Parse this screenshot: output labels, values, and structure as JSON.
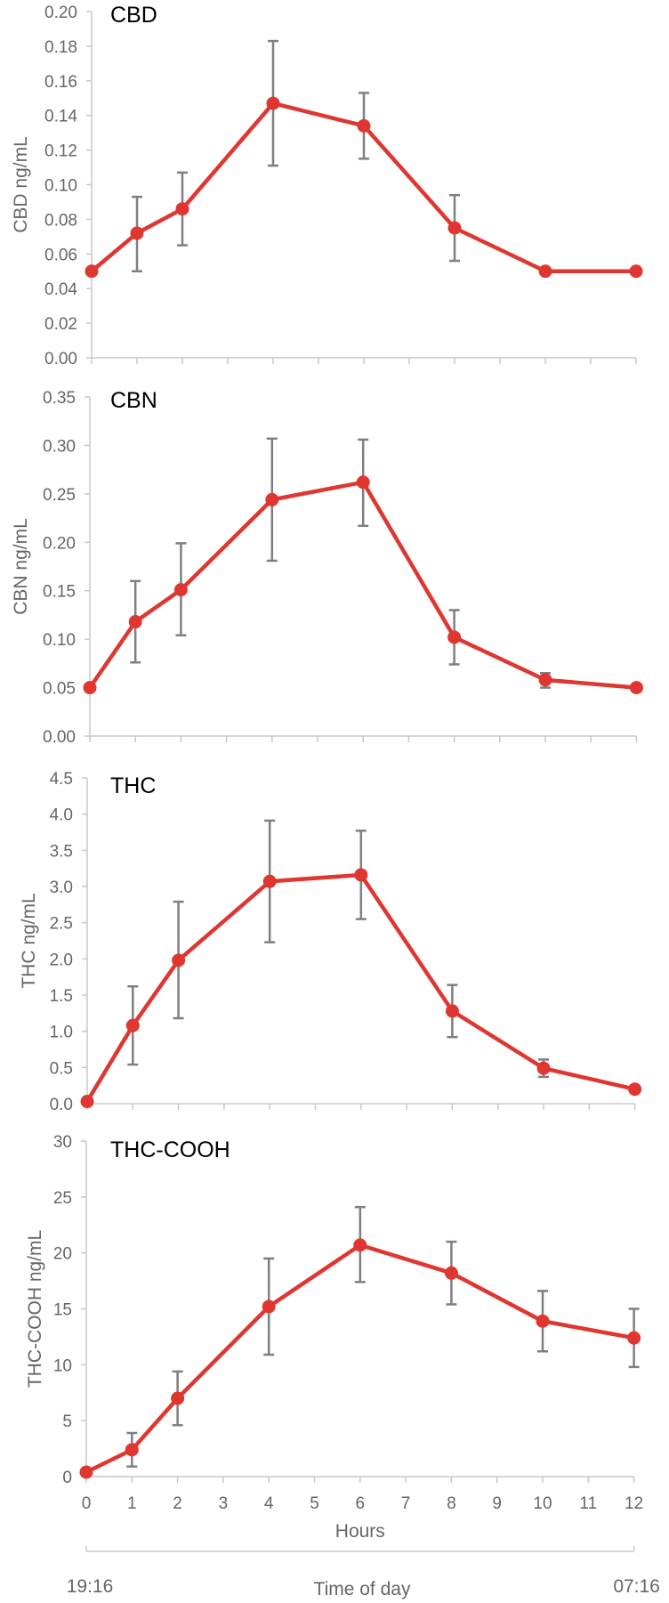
{
  "chart_data": [
    {
      "type": "line",
      "title": "CBD",
      "ylabel": "CBD ng/mL",
      "ylim": [
        0,
        0.2
      ],
      "yticks": [
        "0.00",
        "0.02",
        "0.04",
        "0.06",
        "0.08",
        "0.10",
        "0.12",
        "0.14",
        "0.16",
        "0.18",
        "0.20"
      ],
      "x": [
        0,
        1,
        2,
        4,
        6,
        8,
        10,
        12
      ],
      "values": [
        0.05,
        0.072,
        0.086,
        0.147,
        0.134,
        0.075,
        0.05,
        0.05
      ],
      "err_low": [
        0.05,
        0.05,
        0.065,
        0.111,
        0.115,
        0.056,
        0.05,
        0.05
      ],
      "err_high": [
        0.05,
        0.093,
        0.107,
        0.183,
        0.153,
        0.094,
        0.05,
        0.05
      ],
      "accent": "#e03631"
    },
    {
      "type": "line",
      "title": "CBN",
      "ylabel": "CBN ng/mL",
      "ylim": [
        0,
        0.35
      ],
      "yticks": [
        "0.00",
        "0.05",
        "0.10",
        "0.15",
        "0.20",
        "0.25",
        "0.30",
        "0.35"
      ],
      "x": [
        0,
        1,
        2,
        4,
        6,
        8,
        10,
        12
      ],
      "values": [
        0.05,
        0.118,
        0.151,
        0.244,
        0.262,
        0.102,
        0.058,
        0.05
      ],
      "err_low": [
        0.05,
        0.076,
        0.104,
        0.181,
        0.217,
        0.074,
        0.05,
        0.05
      ],
      "err_high": [
        0.05,
        0.16,
        0.199,
        0.307,
        0.306,
        0.13,
        0.065,
        0.05
      ],
      "accent": "#e03631"
    },
    {
      "type": "line",
      "title": "THC",
      "ylabel": "THC ng/mL",
      "ylim": [
        0,
        4.5
      ],
      "yticks": [
        "0.0",
        "0.5",
        "1.0",
        "1.5",
        "2.0",
        "2.5",
        "3.0",
        "3.5",
        "4.0",
        "4.5"
      ],
      "x": [
        0,
        1,
        2,
        4,
        6,
        8,
        10,
        12
      ],
      "values": [
        0.03,
        1.08,
        1.98,
        3.07,
        3.16,
        1.28,
        0.49,
        0.2
      ],
      "err_low": [
        0.03,
        0.54,
        1.18,
        2.23,
        2.55,
        0.92,
        0.37,
        0.2
      ],
      "err_high": [
        0.03,
        1.62,
        2.79,
        3.91,
        3.77,
        1.64,
        0.61,
        0.2
      ],
      "accent": "#e03631"
    },
    {
      "type": "line",
      "title": "THC-COOH",
      "ylabel": "THC-COOH ng/mL",
      "ylim": [
        0,
        30
      ],
      "yticks": [
        "0",
        "5",
        "10",
        "15",
        "20",
        "25",
        "30"
      ],
      "x": [
        0,
        1,
        2,
        4,
        6,
        8,
        10,
        12
      ],
      "values": [
        0.4,
        2.4,
        7.0,
        15.2,
        20.7,
        18.2,
        13.9,
        12.4
      ],
      "err_low": [
        0.4,
        0.9,
        4.6,
        10.9,
        17.4,
        15.4,
        11.2,
        9.8
      ],
      "err_high": [
        0.4,
        3.9,
        9.4,
        19.5,
        24.1,
        21.0,
        16.6,
        15.0
      ],
      "xticks": [
        "0",
        "1",
        "2",
        "3",
        "4",
        "5",
        "6",
        "7",
        "8",
        "9",
        "10",
        "11",
        "12"
      ],
      "xlabel": "Hours",
      "accent": "#e03631"
    }
  ],
  "time_axis": {
    "start_label": "19:16",
    "end_label": "07:16",
    "title": "Time of day"
  }
}
